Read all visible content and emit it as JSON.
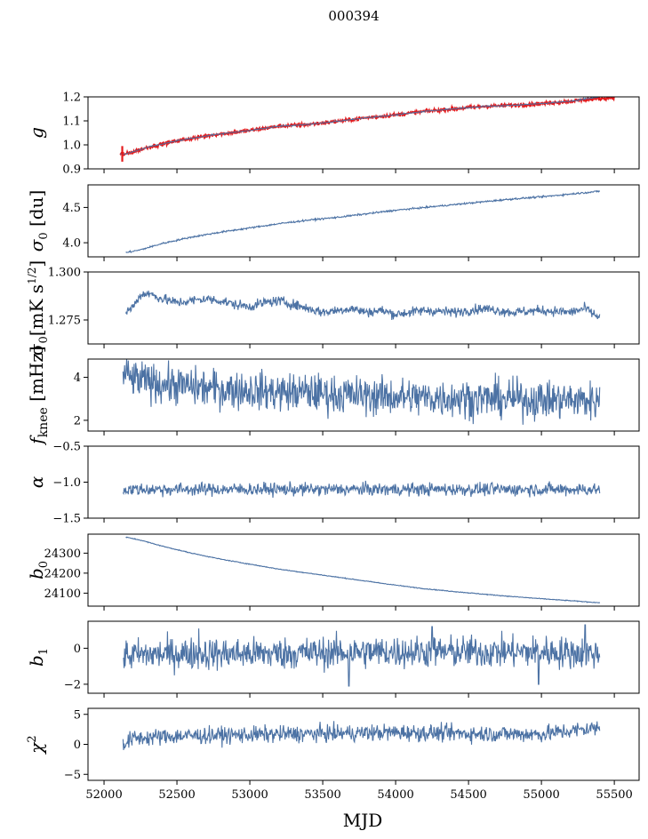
{
  "figure": {
    "title": "000394",
    "xlabel": "MJD",
    "xlim": [
      51890,
      55670
    ],
    "xticks": [
      52000,
      52500,
      53000,
      53500,
      54000,
      54500,
      55000,
      55500
    ],
    "xtick_labels": [
      "52000",
      "52500",
      "53000",
      "53500",
      "54000",
      "54500",
      "55000",
      "55500"
    ]
  },
  "colors": {
    "series": "#4c72a4",
    "highlight": "#e41a1c"
  },
  "chart_data": [
    {
      "type": "line",
      "panel": "g",
      "ylabel": "g",
      "ylim": [
        0.9,
        1.2
      ],
      "yticks": [
        0.9,
        1.0,
        1.1,
        1.2
      ],
      "ytick_labels": [
        "0.9",
        "1.0",
        "1.1",
        "1.2"
      ],
      "noise": 0.002,
      "x": [
        52110,
        52150,
        52300,
        52500,
        52750,
        53000,
        53200,
        53400,
        53600,
        53800,
        54000,
        54200,
        54400,
        54600,
        54800,
        55000,
        55200,
        55400
      ],
      "y": [
        0.962,
        0.962,
        0.99,
        1.017,
        1.042,
        1.06,
        1.078,
        1.085,
        1.098,
        1.113,
        1.125,
        1.14,
        1.15,
        1.16,
        1.165,
        1.172,
        1.182,
        1.2
      ],
      "overlay": {
        "color": "#e41a1c",
        "noise": 0.004,
        "x": [
          52110,
          52150,
          52300,
          52500,
          52750,
          53000,
          53200,
          53400,
          53600,
          53800,
          54000,
          54200,
          54400,
          54600,
          54800,
          55000,
          55200,
          55500
        ],
        "y": [
          0.962,
          0.962,
          0.99,
          1.017,
          1.042,
          1.06,
          1.078,
          1.085,
          1.098,
          1.113,
          1.125,
          1.14,
          1.15,
          1.16,
          1.165,
          1.172,
          1.182,
          1.198
        ],
        "spike": {
          "x": 52125,
          "ymin": 0.93,
          "ymax": 0.995
        }
      }
    },
    {
      "type": "line",
      "panel": "sigma0_du",
      "ylabel": "σ0 [du]",
      "ylim": [
        3.8,
        4.82
      ],
      "yticks": [
        4.0,
        4.5
      ],
      "ytick_labels": [
        "4.0",
        "4.5"
      ],
      "noise": 0.006,
      "x": [
        52150,
        52250,
        52400,
        52600,
        52800,
        53000,
        53200,
        53400,
        53600,
        53800,
        54000,
        54200,
        54400,
        54600,
        54800,
        55000,
        55200,
        55400
      ],
      "y": [
        3.86,
        3.9,
        3.99,
        4.08,
        4.15,
        4.21,
        4.27,
        4.32,
        4.36,
        4.41,
        4.46,
        4.5,
        4.54,
        4.58,
        4.62,
        4.65,
        4.69,
        4.73
      ]
    },
    {
      "type": "line",
      "panel": "sigma0_mK",
      "ylabel": "σ0[mK s^1/2]",
      "ylim": [
        1.2625,
        1.3
      ],
      "yticks": [
        1.275,
        1.3
      ],
      "ytick_labels": [
        "1.275",
        "1.300"
      ],
      "noise": 0.0013,
      "x": [
        52150,
        52200,
        52250,
        52300,
        52400,
        52500,
        52600,
        52700,
        52800,
        52900,
        53000,
        53100,
        53200,
        53300,
        53400,
        53500,
        53600,
        53700,
        53800,
        53900,
        54000,
        54200,
        54400,
        54600,
        54800,
        55000,
        55200,
        55300,
        55400
      ],
      "y": [
        1.279,
        1.282,
        1.288,
        1.289,
        1.286,
        1.284,
        1.285,
        1.286,
        1.285,
        1.283,
        1.282,
        1.284,
        1.285,
        1.283,
        1.281,
        1.279,
        1.28,
        1.281,
        1.279,
        1.28,
        1.278,
        1.28,
        1.279,
        1.281,
        1.279,
        1.28,
        1.279,
        1.281,
        1.276
      ]
    },
    {
      "type": "line",
      "panel": "fknee",
      "ylabel": "f_knee [mHz]",
      "ylim": [
        1.5,
        4.85
      ],
      "yticks": [
        2,
        4
      ],
      "ytick_labels": [
        "2",
        "4"
      ],
      "noise": 0.45,
      "x": [
        52130,
        52200,
        52400,
        52600,
        52800,
        53000,
        53200,
        53400,
        53600,
        53800,
        54000,
        54200,
        54400,
        54600,
        54800,
        55000,
        55200,
        55400
      ],
      "y": [
        4.2,
        3.9,
        3.7,
        3.55,
        3.45,
        3.4,
        3.3,
        3.3,
        3.2,
        3.15,
        3.1,
        3.05,
        3.05,
        3.0,
        3.0,
        2.95,
        2.95,
        2.9
      ]
    },
    {
      "type": "line",
      "panel": "alpha",
      "ylabel": "α",
      "ylim": [
        -1.5,
        -0.5
      ],
      "yticks": [
        -1.5,
        -1.0,
        -0.5
      ],
      "ytick_labels": [
        "−1.5",
        "−1.0",
        "−0.5"
      ],
      "noise": 0.045,
      "x": [
        52130,
        52500,
        53000,
        53500,
        54000,
        54500,
        55000,
        55400
      ],
      "y": [
        -1.1,
        -1.1,
        -1.1,
        -1.1,
        -1.1,
        -1.1,
        -1.1,
        -1.1
      ]
    },
    {
      "type": "line",
      "panel": "b0",
      "ylabel": "b0",
      "ylim": [
        24035,
        24395
      ],
      "yticks": [
        24100,
        24200,
        24300
      ],
      "ytick_labels": [
        "24100",
        "24200",
        "24300"
      ],
      "noise": 1.0,
      "x": [
        52150,
        52250,
        52400,
        52600,
        52800,
        53000,
        53200,
        53400,
        53600,
        53800,
        54000,
        54200,
        54400,
        54600,
        54800,
        55000,
        55200,
        55400
      ],
      "y": [
        24380,
        24365,
        24335,
        24300,
        24270,
        24245,
        24220,
        24200,
        24180,
        24160,
        24140,
        24122,
        24108,
        24095,
        24083,
        24072,
        24062,
        24052
      ]
    },
    {
      "type": "line",
      "panel": "b1",
      "ylabel": "b1",
      "ylim": [
        -2.5,
        1.5
      ],
      "yticks": [
        -2,
        0
      ],
      "ytick_labels": [
        "−2",
        "0"
      ],
      "noise": 0.45,
      "x": [
        52130,
        52500,
        53000,
        53500,
        54000,
        54500,
        55000,
        55400
      ],
      "y": [
        -0.4,
        -0.3,
        -0.3,
        -0.25,
        -0.2,
        -0.2,
        -0.2,
        -0.3
      ],
      "spikes": [
        {
          "x": 53680,
          "y": -2.1
        },
        {
          "x": 54980,
          "y": -2.0
        },
        {
          "x": 52650,
          "y": 1.1
        },
        {
          "x": 54250,
          "y": 1.2
        },
        {
          "x": 55300,
          "y": 1.3
        }
      ]
    },
    {
      "type": "line",
      "panel": "chi2",
      "ylabel": "χ2",
      "ylim": [
        -6,
        6
      ],
      "yticks": [
        -5,
        0,
        5
      ],
      "ytick_labels": [
        "−5",
        "0",
        "5"
      ],
      "noise": 0.7,
      "x": [
        52130,
        52200,
        52500,
        53000,
        53500,
        54000,
        54500,
        55000,
        55400
      ],
      "y": [
        0.0,
        1.0,
        1.4,
        1.6,
        1.8,
        2.0,
        1.8,
        1.7,
        2.8
      ]
    }
  ]
}
